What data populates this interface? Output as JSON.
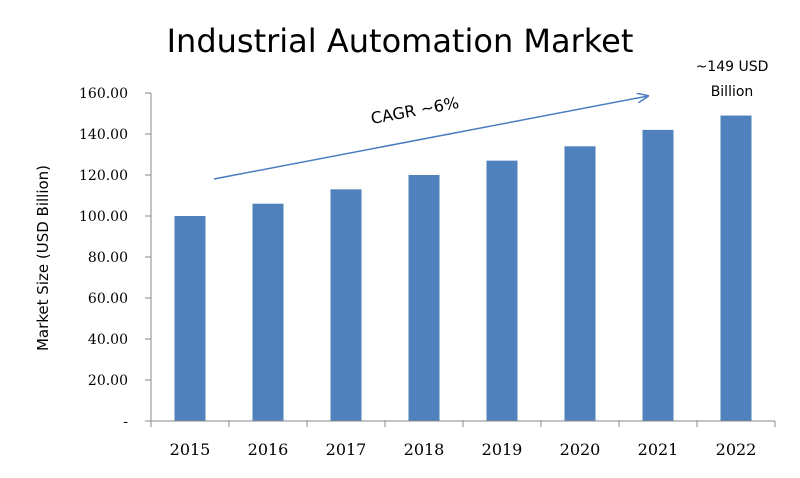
{
  "chart_data": {
    "type": "bar",
    "title": "Industrial Automation Market",
    "ylabel": "Market Size (USD Billion)",
    "xlabel": "",
    "categories": [
      "2015",
      "2016",
      "2017",
      "2018",
      "2019",
      "2020",
      "2021",
      "2022"
    ],
    "values": [
      100,
      106,
      113,
      120,
      127,
      134,
      142,
      149
    ],
    "ylim": [
      0,
      160
    ],
    "yticks": [
      0,
      20,
      40,
      60,
      80,
      100,
      120,
      140,
      160
    ],
    "ytick_labels": [
      "-",
      "20.00",
      "40.00",
      "60.00",
      "80.00",
      "100.00",
      "120.00",
      "140.00",
      "160.00"
    ],
    "grid": false,
    "legend": "none",
    "bar_color": "#4f81bd",
    "annotations": {
      "cagr_label": "CAGR ~6%",
      "end_value_line1": "~149 USD",
      "end_value_line2": "Billion"
    }
  }
}
